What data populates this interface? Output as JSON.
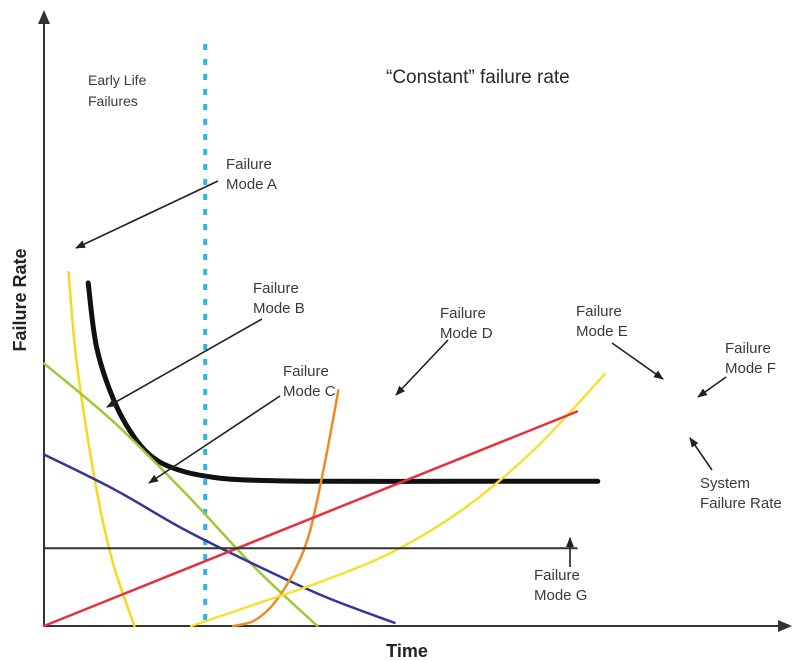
{
  "chart_data": {
    "type": "line",
    "xlabel": "Time",
    "ylabel": "Failure Rate",
    "xlim": [
      0,
      100
    ],
    "ylim": [
      0,
      100
    ],
    "regions": {
      "early_life": [
        "Early Life",
        "Failures"
      ],
      "constant": "“Constant” failure rate"
    },
    "series": [
      {
        "key": "sys",
        "name_lines": [
          "System",
          "Failure Rate"
        ],
        "color": "#111111",
        "points": [
          [
            6.3,
            64
          ],
          [
            7.5,
            52
          ],
          [
            10,
            42
          ],
          [
            13,
            35
          ],
          [
            16,
            31
          ],
          [
            20,
            28.8
          ],
          [
            25,
            27.6
          ],
          [
            30,
            27.2
          ],
          [
            40,
            27
          ],
          [
            60,
            27
          ],
          [
            79,
            27
          ]
        ]
      },
      {
        "key": "a",
        "name_lines": [
          "Failure",
          "Mode A"
        ],
        "color": "#f5d91a",
        "points": [
          [
            3.5,
            66
          ],
          [
            4.5,
            51
          ],
          [
            6,
            37
          ],
          [
            8,
            22
          ],
          [
            10,
            11
          ],
          [
            12.9,
            0
          ]
        ]
      },
      {
        "key": "b",
        "name_lines": [
          "Failure",
          "Mode B"
        ],
        "color": "#9cc93a",
        "points": [
          [
            0,
            49
          ],
          [
            10,
            38
          ],
          [
            20,
            25
          ],
          [
            30,
            11
          ],
          [
            39,
            0
          ]
        ]
      },
      {
        "key": "c",
        "name_lines": [
          "Failure",
          "Mode C"
        ],
        "color": "#35349a",
        "points": [
          [
            0,
            32
          ],
          [
            10,
            25.5
          ],
          [
            20,
            18
          ],
          [
            30,
            11.5
          ],
          [
            40,
            5.5
          ],
          [
            50,
            0.6
          ]
        ]
      },
      {
        "key": "d",
        "name_lines": [
          "Failure",
          "Mode D"
        ],
        "color": "#f08a25",
        "points": [
          [
            27,
            0
          ],
          [
            30,
            1
          ],
          [
            33,
            4.5
          ],
          [
            36,
            11
          ],
          [
            38,
            18
          ],
          [
            40,
            30
          ],
          [
            42,
            44
          ]
        ]
      },
      {
        "key": "e",
        "name_lines": [
          "Failure",
          "Mode E"
        ],
        "color": "#f5e130",
        "points": [
          [
            21,
            0
          ],
          [
            30,
            4
          ],
          [
            40,
            8.5
          ],
          [
            50,
            14
          ],
          [
            60,
            22
          ],
          [
            70,
            33
          ],
          [
            80,
            47
          ]
        ]
      },
      {
        "key": "f",
        "name_lines": [
          "Failure",
          "Mode F"
        ],
        "color": "#e8303a",
        "points": [
          [
            0,
            0
          ],
          [
            76,
            40
          ]
        ]
      },
      {
        "key": "g",
        "name_lines": [
          "Failure",
          "Mode G"
        ],
        "color": "#333333",
        "points": [
          [
            0,
            14.5
          ],
          [
            76,
            14.5
          ]
        ]
      }
    ],
    "annotations": {
      "early_life_boundary_x": 23
    }
  }
}
